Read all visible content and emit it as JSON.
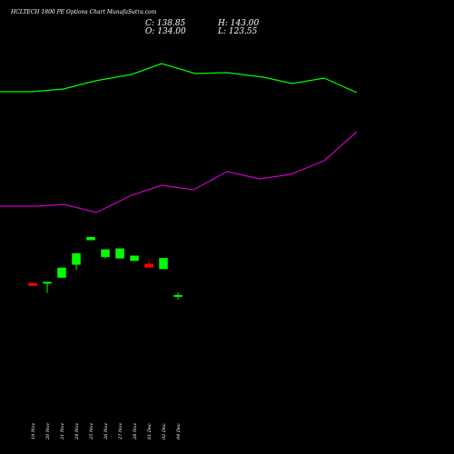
{
  "title": "HCLTECH 1800 PE Options  Chart MunafaSutra.com",
  "ohlc": {
    "open": "O: 134.00",
    "high": "H: 143.00",
    "close": "C: 138.85",
    "low": "L: 123.55"
  },
  "colors": {
    "background": "#000000",
    "bullish": "#00ff00",
    "bearish": "#ff0000",
    "upper_line": "#00ff00",
    "lower_line": "#cc00cc",
    "text": "#ffffff"
  },
  "chart_data": {
    "type": "candlestick",
    "categories": [
      "19 Nov",
      "20 Nov",
      "21 Nov",
      "24 Nov",
      "25 Nov",
      "26 Nov",
      "27 Nov",
      "28 Nov",
      "01 Dec",
      "02 Dec",
      "04 Dec"
    ],
    "candles": [
      {
        "open": 38.0,
        "high": 38.0,
        "low": 33.0,
        "close": 33.0,
        "color": "bearish"
      },
      {
        "open": 40.0,
        "high": 41.0,
        "low": 18.0,
        "close": 40.5,
        "color": "bullish"
      },
      {
        "open": 50.0,
        "high": 70.0,
        "low": 50.0,
        "close": 70.0,
        "color": "bullish"
      },
      {
        "open": 77.0,
        "high": 100.0,
        "low": 66.0,
        "close": 100.0,
        "color": "bullish"
      },
      {
        "open": 128.0,
        "high": 134.0,
        "low": 128.0,
        "close": 134.0,
        "color": "bullish"
      },
      {
        "open": 93.0,
        "high": 108.0,
        "low": 89.0,
        "close": 108.0,
        "color": "bullish"
      },
      {
        "open": 90.0,
        "high": 110.0,
        "low": 90.0,
        "close": 110.0,
        "color": "bullish"
      },
      {
        "open": 85.0,
        "high": 95.0,
        "low": 85.0,
        "close": 95.0,
        "color": "bullish"
      },
      {
        "open": 78.0,
        "high": 85.0,
        "low": 71.0,
        "close": 71.0,
        "color": "bearish"
      },
      {
        "open": 68.0,
        "high": 90.0,
        "low": 68.0,
        "close": 90.0,
        "color": "bullish"
      },
      {
        "open": 13.0,
        "high": 18.5,
        "low": 4.0,
        "close": 13.0,
        "color": "bullish"
      }
    ],
    "series": [
      {
        "name": "",
        "color": "upper_line",
        "values": [
          101.0,
          101.5,
          101.2,
          101.1,
          100.5,
          100.8,
          100.9,
          100.6,
          100.3,
          100.5,
          100.0
        ]
      },
      {
        "name": "",
        "color": "lower_line",
        "values": [
          80.0,
          80.1,
          79.8,
          80.4,
          79.9,
          79.7,
          80.2,
          80.3,
          80.1,
          79.9,
          80.2
        ]
      }
    ]
  }
}
